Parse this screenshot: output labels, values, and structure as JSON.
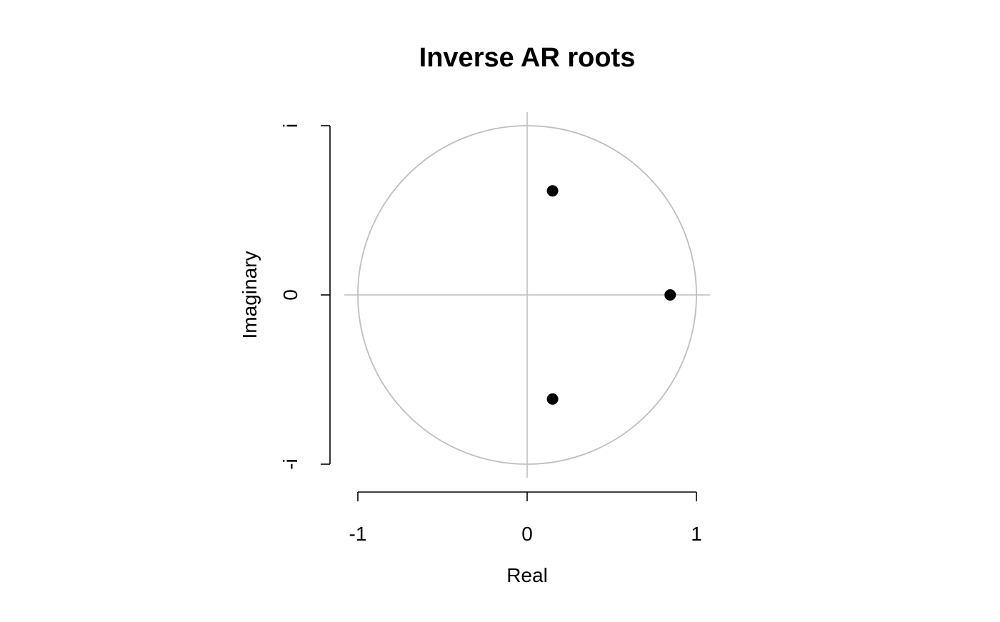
{
  "chart_data": {
    "type": "scatter",
    "title": "Inverse AR roots",
    "xlabel": "Real",
    "ylabel": "Imaginary",
    "xlim": [
      -1,
      1
    ],
    "ylim": [
      -1,
      1
    ],
    "x_ticks": [
      {
        "value": -1,
        "label": "-1"
      },
      {
        "value": 0,
        "label": "0"
      },
      {
        "value": 1,
        "label": "1"
      }
    ],
    "y_ticks": [
      {
        "value": -1,
        "label": "-i"
      },
      {
        "value": 0,
        "label": "0"
      },
      {
        "value": 1,
        "label": "i"
      }
    ],
    "unit_circle": true,
    "reference_lines": [
      0
    ],
    "points": [
      {
        "x": 0.15,
        "y": 0.615
      },
      {
        "x": 0.845,
        "y": 0.0
      },
      {
        "x": 0.15,
        "y": -0.615
      }
    ],
    "colors": {
      "points": "#000000",
      "circle": "#bebebe",
      "axes": "#000000"
    }
  }
}
